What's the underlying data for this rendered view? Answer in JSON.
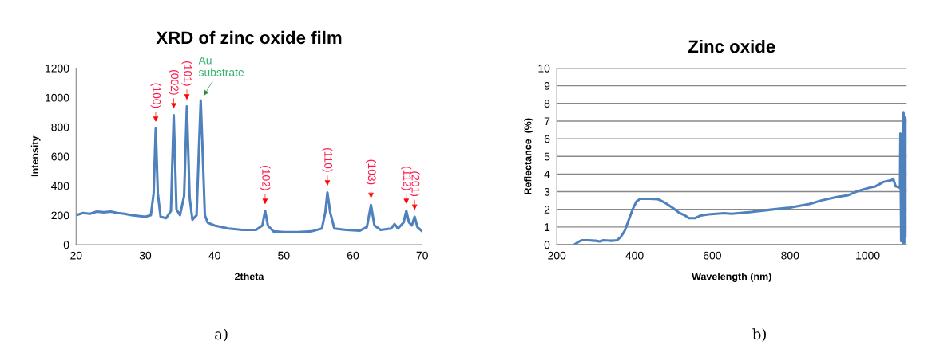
{
  "chart_data": [
    {
      "type": "line",
      "title": "XRD of zinc oxide film",
      "xlabel": "2theta",
      "ylabel": "Intensity",
      "xlim": [
        20,
        70
      ],
      "ylim": [
        0,
        1200
      ],
      "xticks": [
        20,
        30,
        40,
        50,
        60,
        70
      ],
      "yticks": [
        0,
        200,
        400,
        600,
        800,
        1000,
        1200
      ],
      "grid": false,
      "marker": "none",
      "line_style": "solid",
      "series": [
        {
          "color": "#4f81bd",
          "x": [
            20,
            21,
            22,
            23,
            24,
            25,
            26,
            27,
            28,
            29,
            30,
            30.8,
            31.2,
            31.5,
            31.8,
            32.2,
            33,
            33.7,
            34.1,
            34.5,
            35,
            35.6,
            36.0,
            36.4,
            36.8,
            37.4,
            37.7,
            38.0,
            38.3,
            38.6,
            39,
            40,
            42,
            44,
            46,
            46.9,
            47.3,
            47.7,
            48.5,
            50,
            52,
            54,
            55.5,
            56,
            56.3,
            56.7,
            57.3,
            59,
            61,
            62,
            62.6,
            63.1,
            64,
            65.5,
            66,
            66.5,
            67.3,
            67.7,
            68.1,
            68.5,
            68.9,
            69.3,
            70
          ],
          "values": [
            200,
            215,
            210,
            225,
            220,
            225,
            215,
            210,
            200,
            195,
            190,
            200,
            350,
            790,
            350,
            190,
            180,
            230,
            880,
            240,
            200,
            330,
            940,
            320,
            170,
            200,
            600,
            980,
            600,
            200,
            150,
            130,
            110,
            100,
            100,
            130,
            230,
            130,
            90,
            85,
            85,
            90,
            110,
            220,
            355,
            220,
            110,
            100,
            95,
            120,
            270,
            130,
            100,
            110,
            140,
            110,
            150,
            230,
            150,
            130,
            190,
            120,
            90
          ]
        }
      ],
      "annotations": [
        {
          "text": "(100)",
          "x": 31.5,
          "y": 790
        },
        {
          "text": "(002)",
          "x": 34.1,
          "y": 880
        },
        {
          "text": "(101)",
          "x": 36.0,
          "y": 940
        },
        {
          "text": "Au\nsubstrate",
          "x": 38.0,
          "y": 980
        },
        {
          "text": "(102)",
          "x": 47.3,
          "y": 230
        },
        {
          "text": "(110)",
          "x": 56.3,
          "y": 355
        },
        {
          "text": "(103)",
          "x": 62.6,
          "y": 270
        },
        {
          "text": "(112)",
          "x": 67.7,
          "y": 230
        },
        {
          "text": "(201)",
          "x": 68.9,
          "y": 190
        },
        "a)"
      ]
    },
    {
      "type": "line",
      "title": "Zinc oxide",
      "xlabel": "Wavelength (nm)",
      "ylabel": "Reflectance  (%)",
      "xlim": [
        200,
        1100
      ],
      "ylim": [
        0,
        10
      ],
      "xticks": [
        200,
        400,
        600,
        800,
        1000
      ],
      "yticks": [
        0,
        1,
        2,
        3,
        4,
        5,
        6,
        7,
        8,
        9,
        10
      ],
      "grid": "y",
      "marker": "none",
      "line_style": "solid",
      "series": [
        {
          "color": "#4f81bd",
          "x": [
            245,
            255,
            265,
            280,
            300,
            310,
            320,
            340,
            355,
            365,
            375,
            385,
            395,
            405,
            415,
            440,
            460,
            480,
            500,
            515,
            530,
            540,
            555,
            570,
            590,
            610,
            630,
            650,
            700,
            750,
            800,
            850,
            880,
            920,
            950,
            970,
            1000,
            1020,
            1040,
            1060,
            1066,
            1072,
            1080,
            1083,
            1084,
            1086,
            1088,
            1090,
            1092,
            1094,
            1096,
            1098,
            1099
          ],
          "values": [
            0,
            0.15,
            0.25,
            0.25,
            0.22,
            0.18,
            0.25,
            0.22,
            0.25,
            0.45,
            0.8,
            1.4,
            2.0,
            2.45,
            2.6,
            2.6,
            2.58,
            2.35,
            2.05,
            1.8,
            1.65,
            1.5,
            1.5,
            1.65,
            1.72,
            1.75,
            1.78,
            1.75,
            1.85,
            1.98,
            2.1,
            2.3,
            2.5,
            2.7,
            2.8,
            3.0,
            3.2,
            3.3,
            3.55,
            3.65,
            3.7,
            3.3,
            3.25,
            3.2,
            6.3,
            0.2,
            6.0,
            0.1,
            7.5,
            0.1,
            7.2,
            0.5,
            7.1
          ]
        }
      ],
      "annotations": [
        "b)"
      ]
    }
  ]
}
